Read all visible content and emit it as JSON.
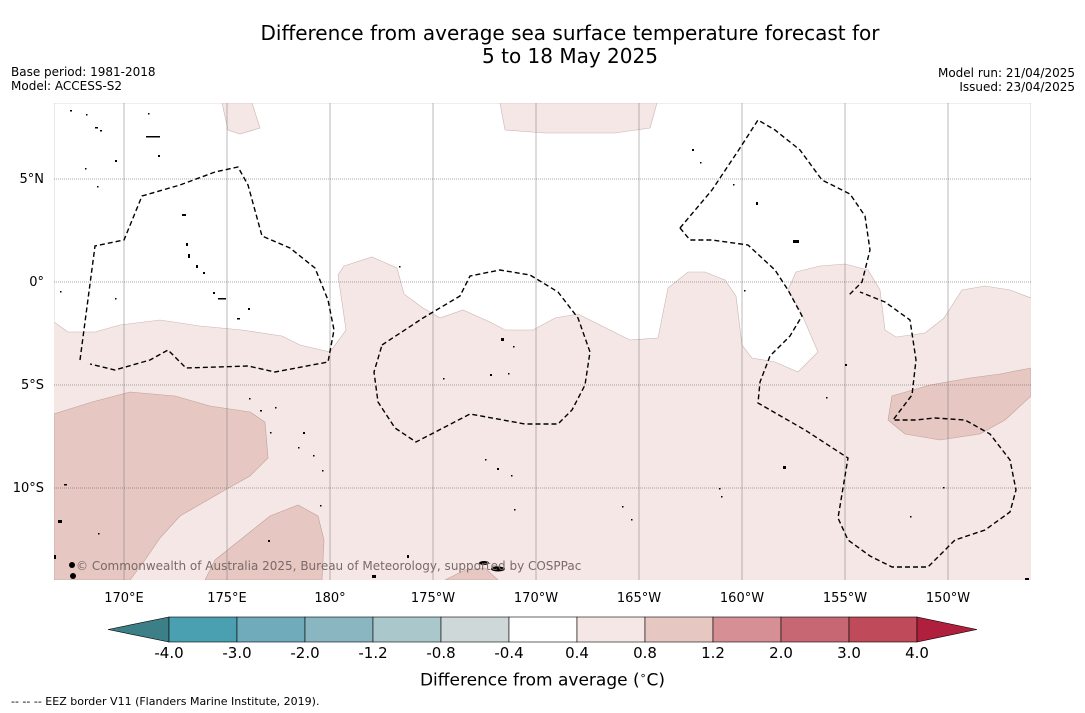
{
  "title": {
    "line1": "Difference from average sea surface temperature forecast for",
    "line2": "5 to 18 May 2025"
  },
  "meta_left": {
    "base_period": "Base period: 1981-2018",
    "model": "Model: ACCESS-S2"
  },
  "meta_right": {
    "model_run": "Model run: 21/04/2025",
    "issued": "Issued: 23/04/2025"
  },
  "map": {
    "lat_labels": [
      "5°N",
      "0°",
      "5°S",
      "10°S"
    ],
    "lon_labels": [
      "170°E",
      "175°E",
      "180°",
      "175°W",
      "170°W",
      "165°W",
      "160°W",
      "155°W",
      "150°W"
    ],
    "copyright": "© Commonwealth of Australia 2025, Bureau of Meteorology, supported by COSPPac",
    "colors": {
      "anomaly_0_4_to_0_8": "#f5e7e5",
      "anomaly_0_8_to_1_2": "#e7c7c1",
      "neutral": "#ffffff",
      "eez_border": "#000000",
      "land": "#3a3a3a"
    }
  },
  "colorbar": {
    "ticks": [
      "-4.0",
      "-3.0",
      "-2.0",
      "-1.2",
      "-0.8",
      "-0.4",
      "0.4",
      "0.8",
      "1.2",
      "2.0",
      "3.0",
      "4.0"
    ],
    "colors": [
      "#3d7f86",
      "#4aa0b1",
      "#6fabbb",
      "#89b6c1",
      "#aac8cc",
      "#cfd8d8",
      "#ffffff",
      "#f5e7e5",
      "#e7c7c1",
      "#d58f95",
      "#c76774",
      "#be4a5a",
      "#b01f3c"
    ],
    "label": "Difference from average (",
    "label_unit_sup": "∘",
    "label_unit": "C)"
  },
  "footnote": "-- -- -- EEZ border V11 (Flanders Marine Institute, 2019)."
}
